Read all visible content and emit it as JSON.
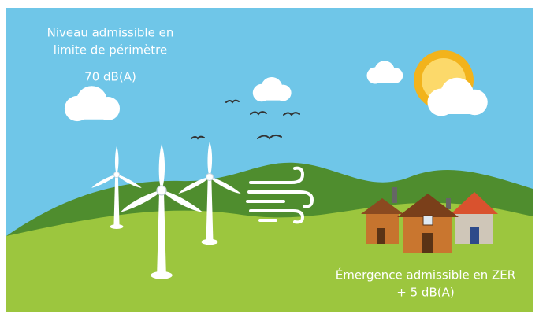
{
  "top_note": {
    "lines": [
      "Niveau admissible en",
      "limite de périmètre",
      "70 dB(A)"
    ]
  },
  "bottom_note": {
    "lines": [
      "Émergence admissible en ZER",
      "+ 5 dB(A)"
    ]
  }
}
